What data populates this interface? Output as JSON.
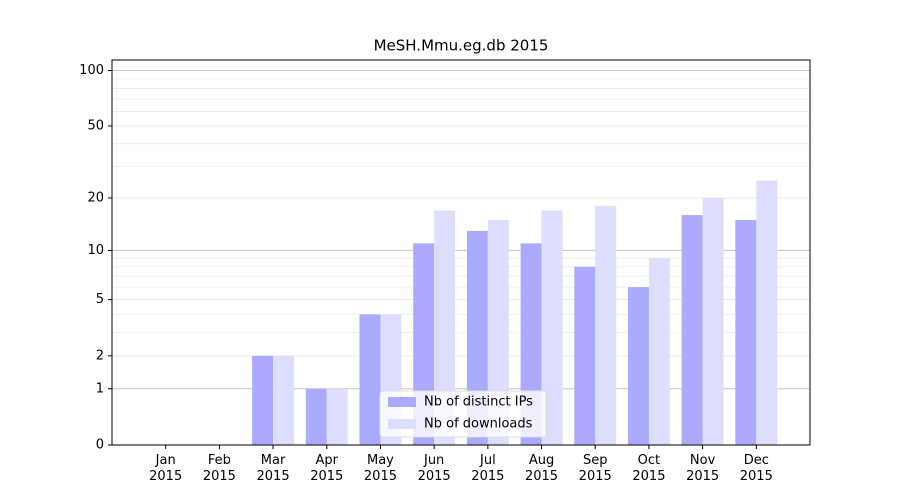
{
  "chart_data": {
    "type": "bar",
    "title": "MeSH.Mmu.eg.db 2015",
    "categories": [
      "Jan\n2015",
      "Feb\n2015",
      "Mar\n2015",
      "Apr\n2015",
      "May\n2015",
      "Jun\n2015",
      "Jul\n2015",
      "Aug\n2015",
      "Sep\n2015",
      "Oct\n2015",
      "Nov\n2015",
      "Dec\n2015"
    ],
    "series": [
      {
        "name": "Nb of distinct IPs",
        "color": "#aaaaff",
        "values": [
          0,
          0,
          2,
          1,
          4,
          11,
          13,
          11,
          8,
          6,
          16,
          15
        ]
      },
      {
        "name": "Nb of downloads",
        "color": "#ddddff",
        "values": [
          0,
          0,
          2,
          1,
          4,
          17,
          15,
          17,
          18,
          9,
          20,
          25
        ]
      }
    ],
    "yscale": "log1p",
    "ylim": [
      0,
      114
    ],
    "yticks": [
      0,
      1,
      2,
      5,
      10,
      20,
      50,
      100
    ],
    "minor_yticks": [
      3,
      4,
      6,
      7,
      8,
      9,
      30,
      40,
      60,
      70,
      80,
      90
    ],
    "major_gridlines": [
      1,
      10,
      100
    ],
    "grid": true,
    "legend": "lower center"
  }
}
